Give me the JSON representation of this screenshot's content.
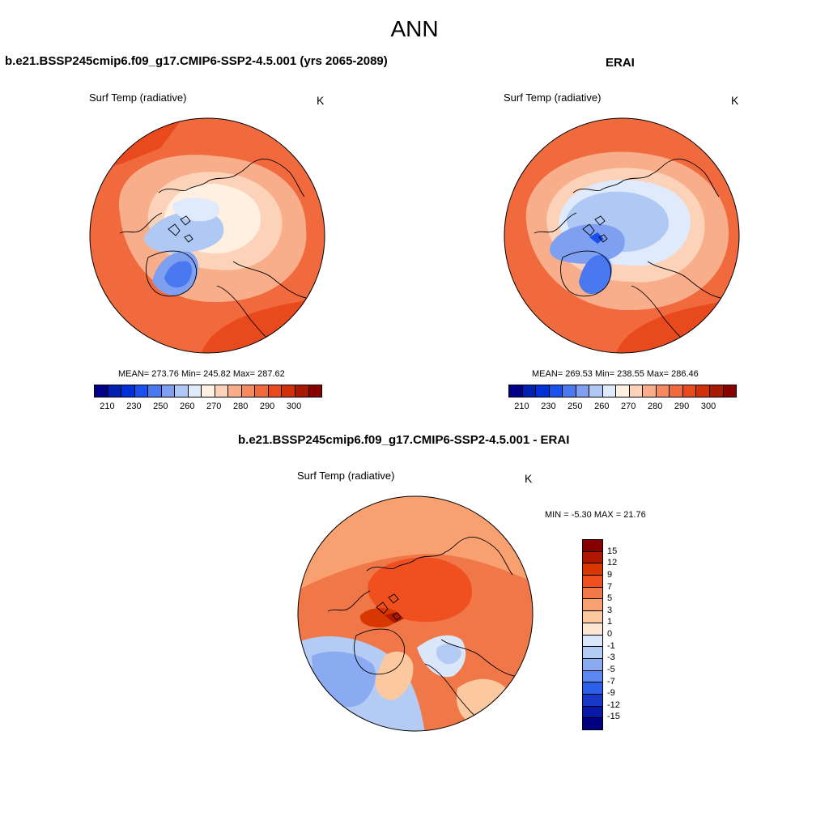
{
  "season": "ANN",
  "panels": {
    "model": {
      "title": "b.e21.BSSP245cmip6.f09_g17.CMIP6-SSP2-4.5.001 (yrs 2065-2089)",
      "variable": "Surf Temp (radiative)",
      "units": "K",
      "stats": "MEAN= 273.76  Min= 245.82  Max= 287.62"
    },
    "obs": {
      "title": "ERAI",
      "variable": "Surf Temp (radiative)",
      "units": "K",
      "stats": "MEAN= 269.53  Min= 238.55  Max= 286.46"
    },
    "diff": {
      "title": "b.e21.BSSP245cmip6.f09_g17.CMIP6-SSP2-4.5.001 - ERAI",
      "variable": "Surf Temp (radiative)",
      "units": "K",
      "stats": "MIN =  -5.30 MAX =  21.76"
    }
  },
  "abs_colorbar": {
    "colors": [
      "#000088",
      "#0020b0",
      "#0030d8",
      "#1a50f0",
      "#4a78f0",
      "#7fa0f0",
      "#b0c8f4",
      "#dfeafc",
      "#fff0e2",
      "#fcd2b8",
      "#f8ae8a",
      "#f58a62",
      "#f06a3e",
      "#e84a1e",
      "#d0300a",
      "#a81802",
      "#880000"
    ],
    "labels": [
      "210",
      "230",
      "250",
      "260",
      "270",
      "280",
      "290",
      "300"
    ]
  },
  "diff_colorbar": {
    "colors": [
      "#8a0000",
      "#b01800",
      "#d83800",
      "#f05020",
      "#f07848",
      "#f8a070",
      "#fcc8a0",
      "#fde6d2",
      "#dae6fa",
      "#b4cbf4",
      "#8aaaf2",
      "#5a88f0",
      "#2c60e8",
      "#1838c8",
      "#0818a8",
      "#000080"
    ],
    "labels": [
      "15",
      "12",
      "9",
      "7",
      "5",
      "3",
      "1",
      "0",
      "-1",
      "-3",
      "-5",
      "-7",
      "-9",
      "-12",
      "-15"
    ]
  }
}
